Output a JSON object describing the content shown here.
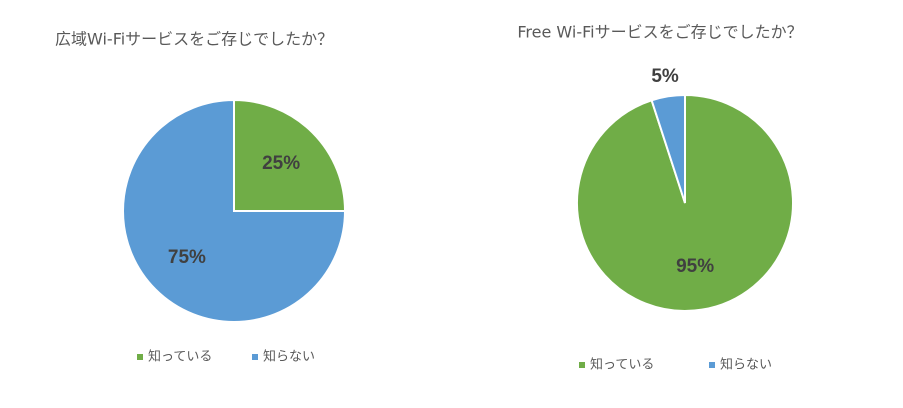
{
  "chart_data": [
    {
      "type": "pie",
      "title": "広域Wi-Fiサービスをご存じでしたか？",
      "categories": [
        "知っている",
        "知らない"
      ],
      "values": [
        25,
        75
      ],
      "value_labels": [
        "25%",
        "75%"
      ],
      "colors": [
        "#70ad47",
        "#5b9bd5"
      ]
    },
    {
      "type": "pie",
      "title": "Free Wi-Fiサービスをご存じでしたか？",
      "categories": [
        "知っている",
        "知らない"
      ],
      "values": [
        95,
        5
      ],
      "value_labels": [
        "95%",
        "5%"
      ],
      "colors": [
        "#70ad47",
        "#5b9bd5"
      ]
    }
  ]
}
